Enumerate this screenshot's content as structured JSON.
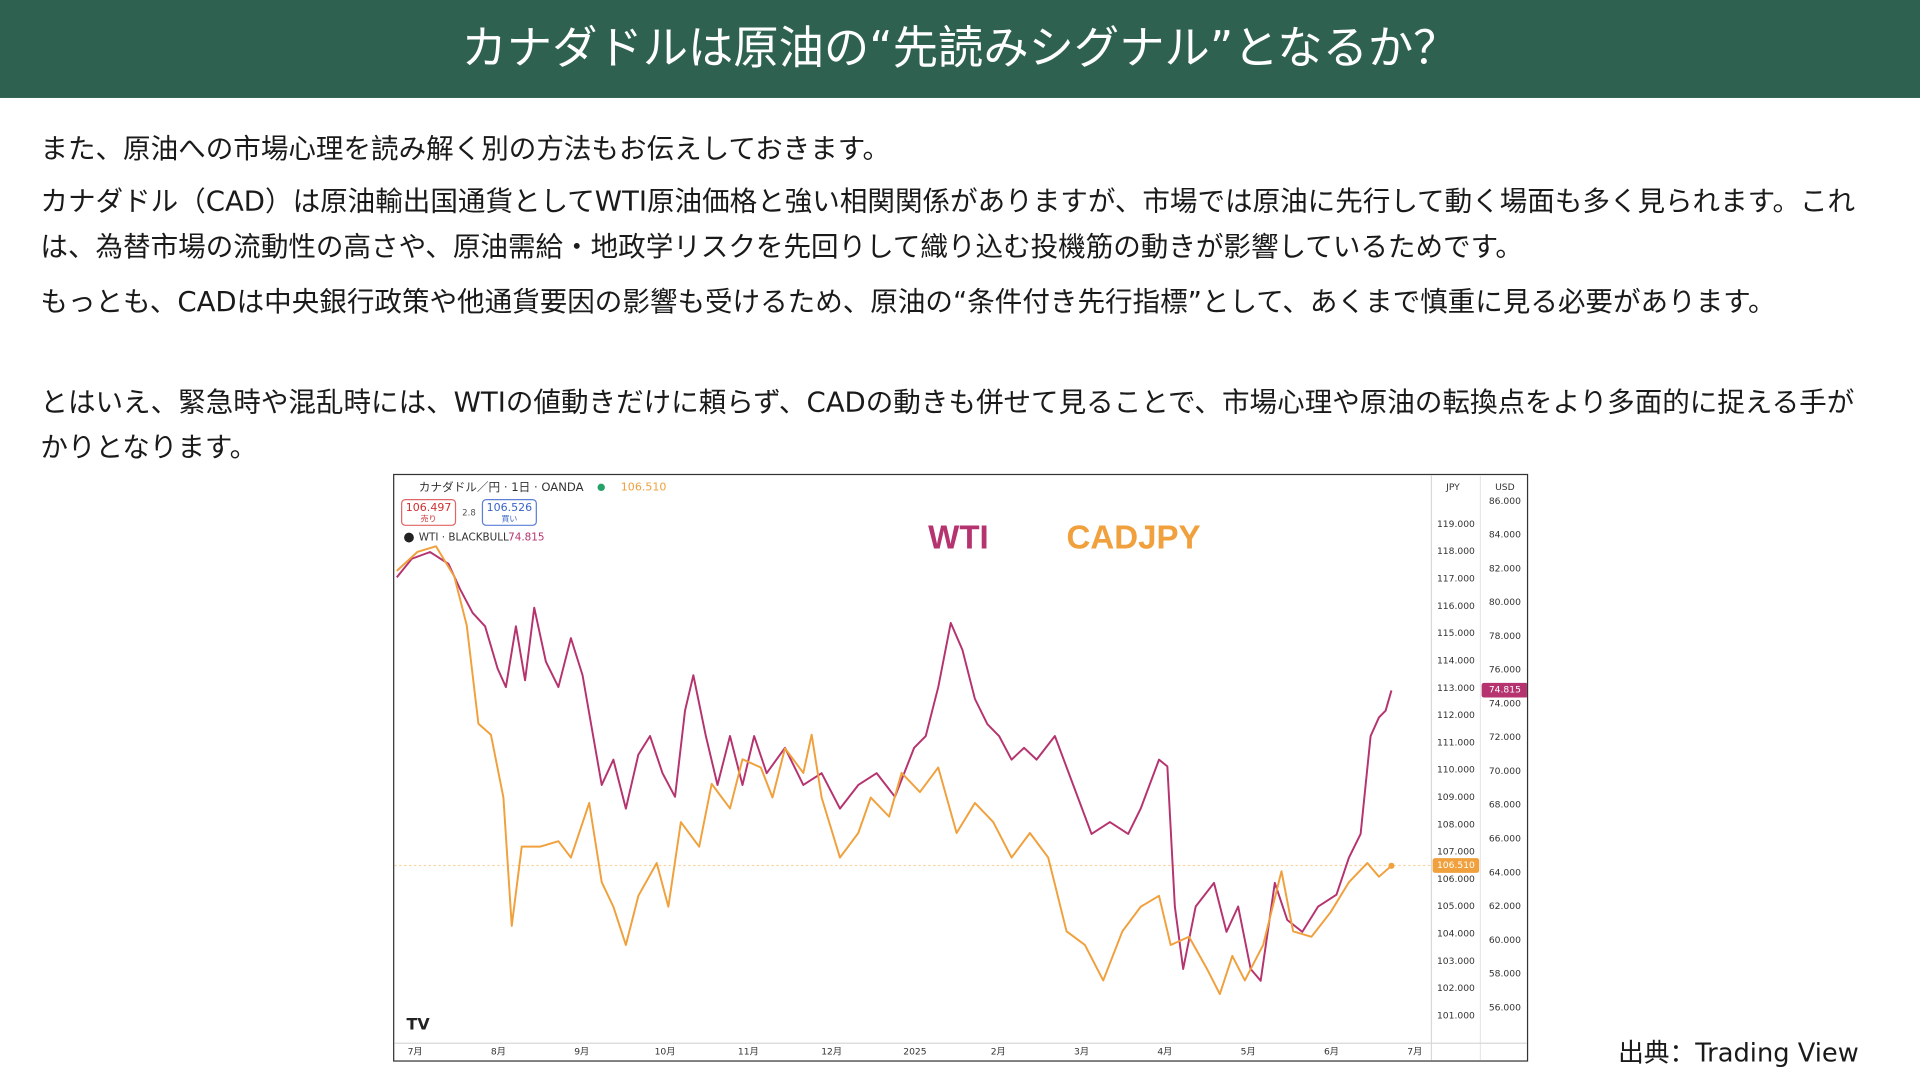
{
  "header": {
    "title": "カナダドルは原油の“先読みシグナル”となるか？"
  },
  "paragraphs": [
    "また、原油への市場心理を読み解く別の方法もお伝えしておきます。",
    "カナダドル（CAD）は原油輸出国通貨としてWTI原油価格と強い相関関係がありますが、市場では原油に先行して動く場面も多く見られます。これは、為替市場の流動性の高さや、原油需給・地政学リスクを先回りして織り込む投機筋の動きが影響しているためです。",
    "もっとも、CADは中央銀行政策や他通貨要因の影響も受けるため、原油の“条件付き先行指標”として、あくまで慎重に見る必要があります。",
    "とはいえ、緊急時や混乱時には、WTIの値動きだけに頼らず、CADの動きも併せて見ることで、市場心理や原油の転換点をより多面的に捉える手がかりとなります。"
  ],
  "source": "出典：Trading View",
  "chart_data": {
    "type": "line",
    "symbol_label": "カナダドル／円 · 1日 · OANDA",
    "bid": "106.497",
    "bid_label": "売り",
    "spread": "2.8",
    "ask": "106.526",
    "ask_label": "買い",
    "overlay_label": "WTI · BLACKBULL",
    "y_unit": "JPY",
    "y2_unit": "USD",
    "xlim": [
      -0.25,
      12.2
    ],
    "xticks": [
      {
        "value": 0,
        "label": "7月"
      },
      {
        "value": 1,
        "label": "8月"
      },
      {
        "value": 2,
        "label": "9月"
      },
      {
        "value": 3,
        "label": "10月"
      },
      {
        "value": 4,
        "label": "11月"
      },
      {
        "value": 5,
        "label": "12月"
      },
      {
        "value": 6,
        "label": "2025"
      },
      {
        "value": 7,
        "label": "2月"
      },
      {
        "value": 8,
        "label": "3月"
      },
      {
        "value": 9,
        "label": "4月"
      },
      {
        "value": 10,
        "label": "5月"
      },
      {
        "value": 11,
        "label": "6月"
      },
      {
        "value": 12,
        "label": "7月"
      }
    ],
    "ylim": [
      100,
      120
    ],
    "yticks": [
      {
        "value": 101,
        "label": "101.000"
      },
      {
        "value": 102,
        "label": "102.000"
      },
      {
        "value": 103,
        "label": "103.000"
      },
      {
        "value": 104,
        "label": "104.000"
      },
      {
        "value": 105,
        "label": "105.000"
      },
      {
        "value": 106,
        "label": "106.000"
      },
      {
        "value": 107,
        "label": "107.000"
      },
      {
        "value": 108,
        "label": "108.000"
      },
      {
        "value": 109,
        "label": "109.000"
      },
      {
        "value": 110,
        "label": "110.000"
      },
      {
        "value": 111,
        "label": "111.000"
      },
      {
        "value": 112,
        "label": "112.000"
      },
      {
        "value": 113,
        "label": "113.000"
      },
      {
        "value": 114,
        "label": "114.000"
      },
      {
        "value": 115,
        "label": "115.000"
      },
      {
        "value": 116,
        "label": "116.000"
      },
      {
        "value": 117,
        "label": "117.000"
      },
      {
        "value": 118,
        "label": "118.000"
      },
      {
        "value": 119,
        "label": "119.000"
      }
    ],
    "y2lim": [
      53.9,
      86.25
    ],
    "y2ticks": [
      {
        "value": 56,
        "label": "56.000"
      },
      {
        "value": 58,
        "label": "58.000"
      },
      {
        "value": 60,
        "label": "60.000"
      },
      {
        "value": 62,
        "label": "62.000"
      },
      {
        "value": 64,
        "label": "64.000"
      },
      {
        "value": 66,
        "label": "66.000"
      },
      {
        "value": 68,
        "label": "68.000"
      },
      {
        "value": 70,
        "label": "70.000"
      },
      {
        "value": 72,
        "label": "72.000"
      },
      {
        "value": 74,
        "label": "74.000"
      },
      {
        "value": 76,
        "label": "76.000"
      },
      {
        "value": 78,
        "label": "78.000"
      },
      {
        "value": 80,
        "label": "80.000"
      },
      {
        "value": 82,
        "label": "82.000"
      },
      {
        "value": 84,
        "label": "84.000"
      },
      {
        "value": 86,
        "label": "86.000"
      }
    ],
    "price_lines": [
      {
        "value": 106.51,
        "label": "106.510",
        "axis": "y",
        "color": "#f0a03c"
      },
      {
        "value": 74.815,
        "label": "74.815",
        "axis": "y2",
        "color": "#b5336f"
      }
    ],
    "series": [
      {
        "name": "WTI",
        "color": "#b5336f",
        "axis": "y2",
        "x": [
          -0.22,
          -0.04,
          0.18,
          0.4,
          0.54,
          0.69,
          0.84,
          0.99,
          1.09,
          1.21,
          1.32,
          1.43,
          1.57,
          1.72,
          1.87,
          2.01,
          2.24,
          2.38,
          2.53,
          2.68,
          2.82,
          2.97,
          3.12,
          3.24,
          3.34,
          3.49,
          3.63,
          3.78,
          3.93,
          4.07,
          4.22,
          4.44,
          4.66,
          4.88,
          5.1,
          5.32,
          5.54,
          5.76,
          5.99,
          6.13,
          6.28,
          6.43,
          6.57,
          6.72,
          6.87,
          7.01,
          7.16,
          7.31,
          7.46,
          7.68,
          7.9,
          8.12,
          8.34,
          8.56,
          8.71,
          8.93,
          9.03,
          9.12,
          9.22,
          9.37,
          9.59,
          9.74,
          9.88,
          10.03,
          10.15,
          10.32,
          10.47,
          10.65,
          10.84,
          11.06,
          11.21,
          11.35,
          11.47,
          11.57,
          11.65,
          11.72
        ],
        "values": [
          81.5,
          82.6,
          83.0,
          82.3,
          80.8,
          79.4,
          78.6,
          76.1,
          75.0,
          78.6,
          75.4,
          79.7,
          76.5,
          75.0,
          77.9,
          75.7,
          69.2,
          70.7,
          67.8,
          71.0,
          72.1,
          69.9,
          68.5,
          73.6,
          75.7,
          72.1,
          69.2,
          72.1,
          69.2,
          72.1,
          69.9,
          71.4,
          69.2,
          69.9,
          67.8,
          69.2,
          69.9,
          68.5,
          71.4,
          72.1,
          75.0,
          78.8,
          77.2,
          74.3,
          72.8,
          72.1,
          70.7,
          71.4,
          70.7,
          72.1,
          69.2,
          66.3,
          67.0,
          66.3,
          67.8,
          70.7,
          70.3,
          62.0,
          58.3,
          62.0,
          63.4,
          60.5,
          62.0,
          58.3,
          57.6,
          63.4,
          61.2,
          60.5,
          62.0,
          62.7,
          64.9,
          66.3,
          72.1,
          73.2,
          73.6,
          74.8
        ]
      },
      {
        "name": "CADJPY",
        "color": "#f0a03c",
        "axis": "y",
        "x": [
          -0.22,
          0.03,
          0.25,
          0.47,
          0.62,
          0.76,
          0.91,
          1.06,
          1.16,
          1.28,
          1.5,
          1.72,
          1.87,
          2.09,
          2.24,
          2.38,
          2.53,
          2.68,
          2.9,
          3.04,
          3.19,
          3.41,
          3.56,
          3.78,
          3.93,
          4.15,
          4.29,
          4.44,
          4.66,
          4.76,
          4.88,
          5.1,
          5.32,
          5.47,
          5.69,
          5.84,
          6.06,
          6.28,
          6.5,
          6.72,
          6.94,
          7.16,
          7.38,
          7.6,
          7.82,
          8.04,
          8.26,
          8.49,
          8.71,
          8.93,
          9.07,
          9.29,
          9.51,
          9.66,
          9.81,
          9.96,
          10.18,
          10.4,
          10.54,
          10.76,
          10.99,
          11.21,
          11.43,
          11.57,
          11.72
        ],
        "values": [
          117.3,
          118.0,
          118.2,
          117.1,
          115.3,
          111.7,
          111.3,
          109.0,
          104.3,
          107.2,
          107.2,
          107.4,
          106.8,
          108.8,
          105.9,
          105.0,
          103.6,
          105.4,
          106.6,
          105.0,
          108.1,
          107.2,
          109.5,
          108.6,
          110.4,
          110.1,
          109.0,
          110.8,
          109.9,
          111.3,
          109.0,
          106.8,
          107.7,
          109.0,
          108.3,
          109.9,
          109.2,
          110.1,
          107.7,
          108.8,
          108.1,
          106.8,
          107.7,
          106.8,
          104.1,
          103.6,
          102.3,
          104.1,
          105.0,
          105.4,
          103.6,
          103.9,
          102.7,
          101.8,
          103.2,
          102.3,
          103.6,
          106.3,
          104.1,
          103.9,
          104.8,
          105.9,
          106.6,
          106.1,
          106.5
        ]
      }
    ]
  }
}
